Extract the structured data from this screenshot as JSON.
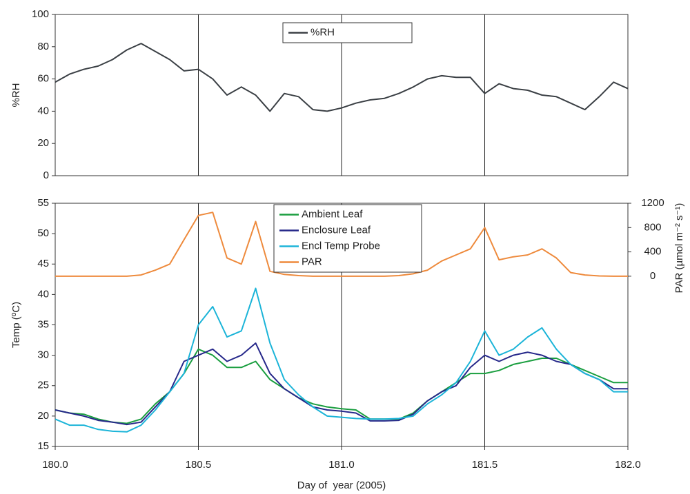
{
  "chart_data": [
    {
      "type": "line",
      "ylabel": "%RH",
      "x": [
        180,
        180.05,
        180.1,
        180.15,
        180.2,
        180.25,
        180.3,
        180.35,
        180.4,
        180.45,
        180.5,
        180.55,
        180.6,
        180.65,
        180.7,
        180.75,
        180.8,
        180.85,
        180.9,
        180.95,
        181,
        181.05,
        181.1,
        181.15,
        181.2,
        181.25,
        181.3,
        181.35,
        181.4,
        181.45,
        181.5,
        181.55,
        181.6,
        181.65,
        181.7,
        181.75,
        181.8,
        181.85,
        181.9,
        181.95,
        182
      ],
      "xlim": [
        180,
        182
      ],
      "xgrid": [
        180.5,
        181,
        181.5
      ],
      "ylim": [
        0,
        100
      ],
      "yticks": [
        0,
        20,
        40,
        60,
        80,
        100
      ],
      "legend": "top",
      "series": [
        {
          "name": "%RH",
          "color": "#3a3f44",
          "values": [
            58,
            63,
            66,
            68,
            72,
            78,
            82,
            77,
            72,
            65,
            66,
            60,
            50,
            55,
            50,
            40,
            51,
            49,
            41,
            40,
            42,
            45,
            47,
            48,
            51,
            55,
            60,
            62,
            61,
            61,
            51,
            57,
            54,
            53,
            50,
            49,
            45,
            41,
            49,
            58,
            54
          ]
        }
      ]
    },
    {
      "type": "line",
      "ylabel": "Temp (ºC)",
      "y2label": "PAR (µmol m⁻² s⁻¹)",
      "xlabel": "Day of  year (2005)",
      "x": [
        180,
        180.05,
        180.1,
        180.15,
        180.2,
        180.25,
        180.3,
        180.35,
        180.4,
        180.45,
        180.5,
        180.55,
        180.6,
        180.65,
        180.7,
        180.75,
        180.8,
        180.85,
        180.9,
        180.95,
        181,
        181.05,
        181.1,
        181.15,
        181.2,
        181.25,
        181.3,
        181.35,
        181.4,
        181.45,
        181.5,
        181.55,
        181.6,
        181.65,
        181.7,
        181.75,
        181.8,
        181.85,
        181.9,
        181.95,
        182
      ],
      "xlim": [
        180,
        182
      ],
      "xticks": [
        {
          "value": 180,
          "label": "180.0"
        },
        180.5,
        {
          "value": 181,
          "label": "181.0"
        },
        181.5,
        {
          "value": 182,
          "label": "182.0"
        }
      ],
      "xgrid": [
        180.5,
        181,
        181.5
      ],
      "ylim": [
        15,
        55
      ],
      "yticks": [
        15,
        20,
        25,
        30,
        35,
        40,
        45,
        50,
        55
      ],
      "y2lim": [
        -2800,
        1200
      ],
      "y2ticks": [
        0,
        400,
        800,
        1200
      ],
      "legend": "top",
      "series": [
        {
          "name": "Ambient Leaf",
          "color": "#1a9e3f",
          "values": [
            21,
            20.5,
            20.3,
            19.5,
            19,
            18.8,
            19.5,
            22,
            24,
            27,
            31,
            30,
            28,
            28,
            29,
            26,
            24.5,
            23,
            22,
            21.5,
            21.2,
            21,
            19.5,
            19.5,
            19.5,
            20.5,
            22.5,
            24,
            25.5,
            27,
            27,
            27.5,
            28.5,
            29,
            29.5,
            29.5,
            28.5,
            27.5,
            26.5,
            25.5,
            25.5
          ]
        },
        {
          "name": "Enclosure Leaf",
          "color": "#26288a",
          "values": [
            21,
            20.5,
            20,
            19.3,
            19,
            18.6,
            19,
            21.5,
            24,
            29,
            30,
            31,
            29,
            30,
            32,
            27,
            24.5,
            23,
            21.5,
            21,
            20.8,
            20.5,
            19.2,
            19.2,
            19.3,
            20.3,
            22.5,
            24,
            25,
            28,
            30,
            29,
            30,
            30.5,
            30,
            29,
            28.5,
            27,
            26,
            24.5,
            24.5
          ]
        },
        {
          "name": "Encl Temp Probe",
          "color": "#1bb4d8",
          "values": [
            19.5,
            18.5,
            18.5,
            17.8,
            17.5,
            17.4,
            18.5,
            21,
            24,
            27,
            35,
            38,
            33,
            34,
            41,
            32,
            26,
            23.5,
            21.5,
            20,
            19.8,
            19.6,
            19.5,
            19.5,
            19.6,
            20,
            22,
            23.5,
            25.5,
            29,
            34,
            30,
            31,
            33,
            34.5,
            31,
            28.5,
            27,
            26,
            24,
            24
          ]
        },
        {
          "name": "PAR",
          "color": "#ee8a3c",
          "axis": "y2",
          "values": [
            0,
            0,
            0,
            0,
            0,
            0,
            20,
            100,
            200,
            600,
            1000,
            1050,
            300,
            200,
            900,
            80,
            30,
            10,
            0,
            0,
            0,
            0,
            0,
            0,
            10,
            40,
            100,
            250,
            350,
            450,
            800,
            270,
            320,
            350,
            450,
            300,
            60,
            20,
            5,
            0,
            0
          ]
        }
      ]
    }
  ]
}
